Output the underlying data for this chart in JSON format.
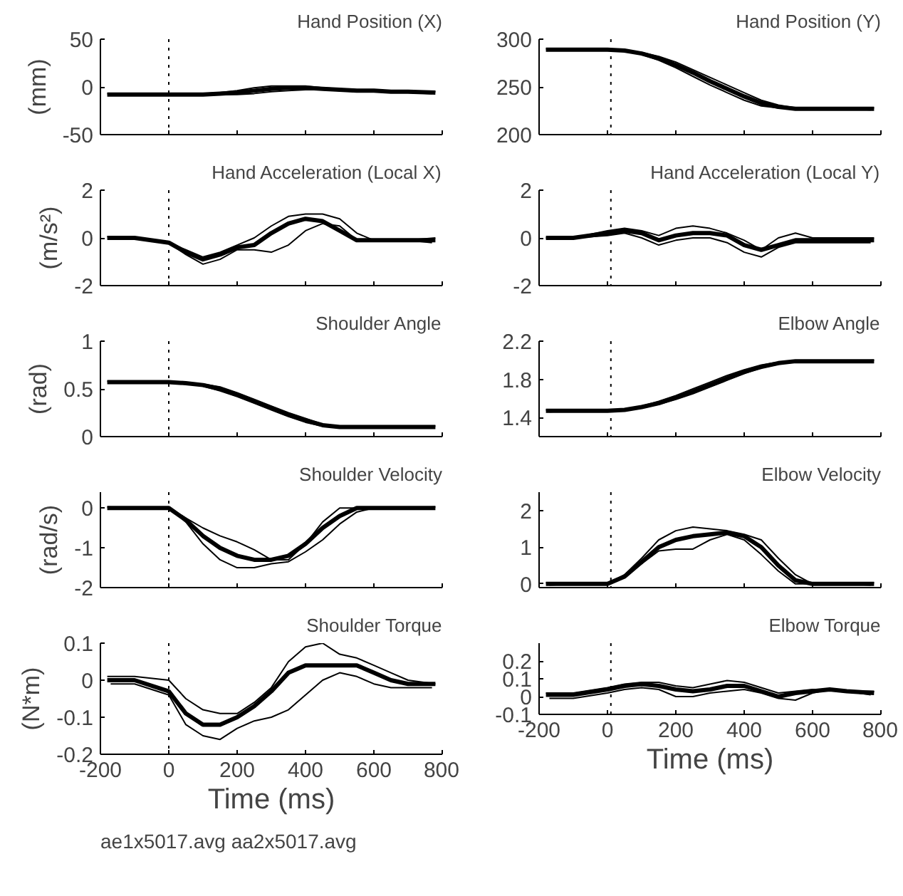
{
  "chart_data": [
    {
      "type": "line",
      "title": "Hand Position (X)",
      "ylabel": "(mm)",
      "xlim": [
        -200,
        800
      ],
      "xticks": [
        -200,
        0,
        200,
        400,
        600,
        800
      ],
      "ylim": [
        -50,
        50
      ],
      "yticks": [
        -50,
        0,
        50
      ],
      "tick_labels": "y",
      "ref_lines": [
        {
          "axis": "x",
          "value": 0,
          "line_style": "dotted",
          "color": "#000000"
        }
      ],
      "x": [
        -180,
        -100,
        0,
        50,
        100,
        150,
        200,
        250,
        300,
        350,
        400,
        450,
        500,
        550,
        600,
        650,
        700,
        780
      ],
      "series": [
        {
          "color": "#000000",
          "values": [
            -8,
            -8,
            -8,
            -8,
            -8,
            -7,
            -6,
            -4,
            -2,
            -1,
            -1,
            -2,
            -3,
            -4,
            -4,
            -5,
            -5,
            -6
          ]
        },
        {
          "color": "#000000",
          "values": [
            -7,
            -8,
            -8,
            -8,
            -7,
            -6,
            -4,
            -1,
            1,
            1,
            1,
            -1,
            -2,
            -3,
            -4,
            -5,
            -5,
            -5
          ]
        },
        {
          "color": "#000000",
          "x": [
            -170,
            -100,
            0,
            50,
            100,
            150,
            200,
            250,
            300,
            350,
            400,
            450,
            500,
            550,
            600,
            650,
            700,
            770
          ],
          "values": [
            -9,
            -8,
            -8,
            -8,
            -8,
            -8,
            -8,
            -7,
            -5,
            -4,
            -3,
            -3,
            -4,
            -5,
            -5,
            -5,
            -6,
            -7
          ]
        }
      ]
    },
    {
      "type": "line",
      "title": "Hand Position (Y)",
      "xlim": [
        -200,
        800
      ],
      "xticks": [
        -200,
        0,
        200,
        400,
        600,
        800
      ],
      "ylim": [
        200,
        300
      ],
      "yticks": [
        200,
        250,
        300
      ],
      "tick_labels": "y",
      "ref_lines": [
        {
          "axis": "x",
          "value": 10,
          "line_style": "dotted",
          "color": "#000000"
        }
      ],
      "x": [
        -180,
        -100,
        0,
        50,
        100,
        150,
        200,
        250,
        300,
        350,
        400,
        450,
        500,
        550,
        600,
        650,
        700,
        780
      ],
      "series": [
        {
          "color": "#000000",
          "values": [
            289,
            289,
            289,
            288,
            285,
            280,
            273,
            265,
            256,
            248,
            240,
            233,
            229,
            227,
            227,
            227,
            227,
            227
          ]
        },
        {
          "color": "#000000",
          "values": [
            290,
            289,
            289,
            288,
            286,
            282,
            276,
            268,
            260,
            252,
            244,
            236,
            231,
            228,
            227,
            227,
            227,
            228
          ]
        },
        {
          "color": "#000000",
          "x": [
            -170,
            -100,
            0,
            50,
            100,
            150,
            200,
            250,
            300,
            350,
            400,
            450,
            500,
            550,
            600,
            650,
            700,
            770
          ],
          "values": [
            288,
            289,
            289,
            288,
            284,
            278,
            270,
            261,
            252,
            244,
            236,
            230,
            228,
            227,
            227,
            227,
            227,
            226
          ]
        }
      ]
    },
    {
      "type": "line",
      "title": "Hand Acceleration (Local X)",
      "ylabel": "(m/s²)",
      "xlim": [
        -200,
        800
      ],
      "xticks": [
        -200,
        0,
        200,
        400,
        600,
        800
      ],
      "ylim": [
        -2,
        2
      ],
      "yticks": [
        -2,
        0,
        2
      ],
      "tick_labels": "y",
      "ref_lines": [
        {
          "axis": "x",
          "value": 0,
          "line_style": "dotted",
          "color": "#000000"
        }
      ],
      "x": [
        -180,
        -100,
        0,
        50,
        100,
        150,
        200,
        250,
        300,
        350,
        400,
        450,
        500,
        550,
        600,
        650,
        700,
        780
      ],
      "series": [
        {
          "color": "#000000",
          "values": [
            0,
            0,
            -0.2,
            -0.6,
            -0.9,
            -0.7,
            -0.4,
            -0.3,
            0.2,
            0.6,
            0.8,
            0.7,
            0.3,
            -0.1,
            -0.1,
            -0.1,
            -0.1,
            -0.1
          ]
        },
        {
          "color": "#000000",
          "values": [
            0.05,
            0,
            -0.2,
            -0.5,
            -0.8,
            -0.6,
            -0.3,
            0,
            0.5,
            0.9,
            1.0,
            1.0,
            0.8,
            0.2,
            -0.1,
            -0.1,
            -0.1,
            0
          ]
        },
        {
          "color": "#000000",
          "x": [
            -170,
            -100,
            0,
            50,
            100,
            150,
            200,
            250,
            300,
            350,
            400,
            450,
            500,
            550,
            600,
            650,
            700,
            770
          ],
          "values": [
            -0.05,
            0,
            -0.2,
            -0.7,
            -1.1,
            -0.9,
            -0.5,
            -0.5,
            -0.6,
            -0.3,
            0.3,
            0.6,
            0.5,
            -0.1,
            -0.1,
            -0.1,
            -0.1,
            -0.2
          ]
        }
      ]
    },
    {
      "type": "line",
      "title": "Hand Acceleration (Local Y)",
      "xlim": [
        -200,
        800
      ],
      "xticks": [
        -200,
        0,
        200,
        400,
        600,
        800
      ],
      "ylim": [
        -2,
        2
      ],
      "yticks": [
        -2,
        0,
        2
      ],
      "tick_labels": "y",
      "ref_lines": [
        {
          "axis": "x",
          "value": 10,
          "line_style": "dotted",
          "color": "#000000"
        }
      ],
      "x": [
        -180,
        -100,
        0,
        50,
        100,
        150,
        200,
        250,
        300,
        350,
        400,
        450,
        500,
        550,
        600,
        650,
        700,
        780
      ],
      "series": [
        {
          "color": "#000000",
          "values": [
            0,
            0,
            0.2,
            0.3,
            0.2,
            -0.1,
            0.1,
            0.2,
            0.2,
            0.1,
            -0.3,
            -0.5,
            -0.3,
            -0.1,
            -0.1,
            -0.1,
            -0.1,
            -0.1
          ]
        },
        {
          "color": "#000000",
          "values": [
            0,
            0,
            0.3,
            0.4,
            0.3,
            0.1,
            0.4,
            0.5,
            0.4,
            0.2,
            -0.1,
            -0.5,
            0,
            0.2,
            0,
            0,
            0,
            0
          ]
        },
        {
          "color": "#000000",
          "x": [
            -170,
            -100,
            0,
            50,
            100,
            150,
            200,
            250,
            300,
            350,
            400,
            450,
            500,
            550,
            600,
            650,
            700,
            770
          ],
          "values": [
            0,
            0,
            0.1,
            0.2,
            0,
            -0.3,
            -0.1,
            0,
            0,
            -0.2,
            -0.6,
            -0.8,
            -0.4,
            -0.2,
            -0.2,
            -0.2,
            -0.2,
            -0.2
          ]
        }
      ]
    },
    {
      "type": "line",
      "title": "Shoulder Angle",
      "ylabel": "(rad)",
      "xlim": [
        -200,
        800
      ],
      "xticks": [
        -200,
        0,
        200,
        400,
        600,
        800
      ],
      "ylim": [
        0,
        1
      ],
      "yticks": [
        0,
        0.5,
        1
      ],
      "tick_labels": "y",
      "ref_lines": [
        {
          "axis": "x",
          "value": 0,
          "line_style": "dotted",
          "color": "#000000"
        }
      ],
      "x": [
        -180,
        -100,
        0,
        50,
        100,
        150,
        200,
        250,
        300,
        350,
        400,
        450,
        500,
        550,
        600,
        650,
        700,
        780
      ],
      "series": [
        {
          "color": "#000000",
          "values": [
            0.57,
            0.57,
            0.57,
            0.56,
            0.54,
            0.5,
            0.44,
            0.37,
            0.3,
            0.23,
            0.17,
            0.12,
            0.1,
            0.1,
            0.1,
            0.1,
            0.1,
            0.1
          ]
        },
        {
          "color": "#000000",
          "values": [
            0.58,
            0.57,
            0.57,
            0.56,
            0.55,
            0.52,
            0.46,
            0.39,
            0.32,
            0.25,
            0.19,
            0.13,
            0.1,
            0.1,
            0.1,
            0.1,
            0.1,
            0.11
          ]
        },
        {
          "color": "#000000",
          "x": [
            -170,
            -100,
            0,
            50,
            100,
            150,
            200,
            250,
            300,
            350,
            400,
            450,
            500,
            550,
            600,
            650,
            700,
            770
          ],
          "values": [
            0.56,
            0.57,
            0.57,
            0.56,
            0.53,
            0.48,
            0.42,
            0.35,
            0.28,
            0.21,
            0.15,
            0.11,
            0.1,
            0.1,
            0.1,
            0.1,
            0.1,
            0.09
          ]
        }
      ]
    },
    {
      "type": "line",
      "title": "Elbow Angle",
      "xlim": [
        -200,
        800
      ],
      "xticks": [
        -200,
        0,
        200,
        400,
        600,
        800
      ],
      "ylim": [
        1.2,
        2.2
      ],
      "yticks": [
        1.4,
        1.8,
        2.2
      ],
      "tick_labels": "y",
      "ref_lines": [
        {
          "axis": "x",
          "value": 10,
          "line_style": "dotted",
          "color": "#000000"
        }
      ],
      "x": [
        -180,
        -100,
        0,
        50,
        100,
        150,
        200,
        250,
        300,
        350,
        400,
        450,
        500,
        550,
        600,
        650,
        700,
        780
      ],
      "series": [
        {
          "color": "#000000",
          "values": [
            1.47,
            1.47,
            1.47,
            1.48,
            1.51,
            1.55,
            1.61,
            1.67,
            1.74,
            1.81,
            1.88,
            1.93,
            1.97,
            1.99,
            1.99,
            1.99,
            1.99,
            1.99
          ]
        },
        {
          "color": "#000000",
          "values": [
            1.48,
            1.47,
            1.47,
            1.48,
            1.52,
            1.57,
            1.63,
            1.7,
            1.77,
            1.84,
            1.9,
            1.95,
            1.98,
            1.99,
            1.99,
            1.99,
            1.99,
            2.0
          ]
        },
        {
          "color": "#000000",
          "x": [
            -170,
            -100,
            0,
            50,
            100,
            150,
            200,
            250,
            300,
            350,
            400,
            450,
            500,
            550,
            600,
            650,
            700,
            770
          ],
          "values": [
            1.46,
            1.47,
            1.47,
            1.48,
            1.5,
            1.54,
            1.59,
            1.65,
            1.72,
            1.79,
            1.86,
            1.92,
            1.96,
            1.99,
            1.99,
            1.99,
            1.99,
            1.98
          ]
        }
      ]
    },
    {
      "type": "line",
      "title": "Shoulder Velocity",
      "ylabel": "(rad/s)",
      "xlim": [
        -200,
        800
      ],
      "xticks": [
        -200,
        0,
        200,
        400,
        600,
        800
      ],
      "ylim": [
        -2,
        0.4
      ],
      "yticks": [
        -2,
        -1,
        0
      ],
      "tick_labels": "y",
      "ref_lines": [
        {
          "axis": "x",
          "value": 0,
          "line_style": "dotted",
          "color": "#000000"
        }
      ],
      "x": [
        -180,
        -100,
        0,
        50,
        100,
        150,
        200,
        250,
        300,
        350,
        400,
        450,
        500,
        550,
        600,
        650,
        700,
        780
      ],
      "series": [
        {
          "color": "#000000",
          "values": [
            0,
            0,
            0,
            -0.3,
            -0.7,
            -1.0,
            -1.2,
            -1.3,
            -1.3,
            -1.2,
            -0.9,
            -0.5,
            -0.2,
            0,
            0,
            0,
            0,
            0
          ]
        },
        {
          "color": "#000000",
          "values": [
            0.03,
            0,
            0,
            -0.25,
            -0.5,
            -0.7,
            -0.85,
            -1.05,
            -1.3,
            -1.3,
            -0.9,
            -0.35,
            0,
            0,
            0,
            0,
            0,
            0.03
          ]
        },
        {
          "color": "#000000",
          "x": [
            -170,
            -100,
            0,
            50,
            100,
            150,
            200,
            250,
            300,
            350,
            400,
            450,
            500,
            550,
            600,
            650,
            700,
            770
          ],
          "values": [
            -0.03,
            0,
            0,
            -0.35,
            -0.9,
            -1.3,
            -1.5,
            -1.5,
            -1.4,
            -1.35,
            -1.1,
            -0.8,
            -0.4,
            -0.1,
            0,
            0,
            0,
            -0.03
          ]
        }
      ]
    },
    {
      "type": "line",
      "title": "Elbow Velocity",
      "xlim": [
        -200,
        800
      ],
      "xticks": [
        -200,
        0,
        200,
        400,
        600,
        800
      ],
      "ylim": [
        -0.1,
        2.5
      ],
      "yticks": [
        0,
        1,
        2
      ],
      "tick_labels": "y",
      "ref_lines": [
        {
          "axis": "x",
          "value": 10,
          "line_style": "dotted",
          "color": "#000000"
        }
      ],
      "x": [
        -180,
        -100,
        0,
        50,
        100,
        150,
        200,
        250,
        300,
        350,
        400,
        450,
        500,
        550,
        600,
        650,
        700,
        780
      ],
      "series": [
        {
          "color": "#000000",
          "values": [
            0,
            0,
            0,
            0.2,
            0.6,
            1.0,
            1.2,
            1.3,
            1.35,
            1.4,
            1.3,
            1.0,
            0.5,
            0.1,
            0,
            0,
            0,
            0
          ]
        },
        {
          "color": "#000000",
          "values": [
            0.03,
            0,
            0,
            0.25,
            0.7,
            1.2,
            1.45,
            1.55,
            1.5,
            1.45,
            1.35,
            1.2,
            0.7,
            0.25,
            0,
            0,
            0,
            0.03
          ]
        },
        {
          "color": "#000000",
          "x": [
            -170,
            -100,
            0,
            50,
            100,
            150,
            200,
            250,
            300,
            350,
            400,
            450,
            500,
            550,
            600,
            650,
            700,
            770
          ],
          "values": [
            -0.03,
            0,
            0,
            0.2,
            0.55,
            0.9,
            0.95,
            0.95,
            1.2,
            1.35,
            1.2,
            0.8,
            0.35,
            0,
            0,
            0,
            0,
            -0.03
          ]
        }
      ]
    },
    {
      "type": "line",
      "title": "Shoulder Torque",
      "ylabel": "(N*m)",
      "xlabel": "Time (ms)",
      "xlim": [
        -200,
        800
      ],
      "xticks": [
        -200,
        0,
        200,
        400,
        600,
        800
      ],
      "ylim": [
        -0.2,
        0.1
      ],
      "yticks": [
        -0.2,
        -0.1,
        0,
        0.1
      ],
      "ref_lines": [
        {
          "axis": "x",
          "value": 0,
          "line_style": "dotted",
          "color": "#000000"
        }
      ],
      "annotations": [
        "ae1x5017.avg aa2x5017.avg"
      ],
      "x": [
        -180,
        -100,
        0,
        50,
        100,
        150,
        200,
        250,
        300,
        350,
        400,
        450,
        500,
        550,
        600,
        650,
        700,
        780
      ],
      "series": [
        {
          "color": "#000000",
          "values": [
            0,
            0,
            -0.03,
            -0.09,
            -0.12,
            -0.12,
            -0.1,
            -0.07,
            -0.03,
            0.02,
            0.04,
            0.04,
            0.04,
            0.04,
            0.02,
            0,
            -0.01,
            -0.01
          ]
        },
        {
          "color": "#000000",
          "values": [
            0.01,
            0.01,
            0,
            -0.05,
            -0.08,
            -0.09,
            -0.09,
            -0.06,
            -0.02,
            0.05,
            0.09,
            0.1,
            0.07,
            0.06,
            0.04,
            0.02,
            0,
            -0.01
          ]
        },
        {
          "color": "#000000",
          "x": [
            -170,
            -100,
            0,
            50,
            100,
            150,
            200,
            250,
            300,
            350,
            400,
            450,
            500,
            550,
            600,
            650,
            700,
            770
          ],
          "values": [
            -0.01,
            -0.01,
            -0.04,
            -0.12,
            -0.15,
            -0.16,
            -0.13,
            -0.11,
            -0.1,
            -0.08,
            -0.04,
            0,
            0.02,
            0.01,
            -0.01,
            -0.02,
            -0.02,
            -0.02
          ]
        }
      ]
    },
    {
      "type": "line",
      "title": "Elbow Torque",
      "xlabel": "Time (ms)",
      "xlim": [
        -200,
        800
      ],
      "xticks": [
        -200,
        0,
        200,
        400,
        600,
        800
      ],
      "ylim": [
        -0.1,
        0.3
      ],
      "yticks": [
        -0.1,
        0,
        0.1,
        0.2
      ],
      "ref_lines": [
        {
          "axis": "x",
          "value": 10,
          "line_style": "dotted",
          "color": "#000000"
        }
      ],
      "x": [
        -180,
        -100,
        0,
        50,
        100,
        150,
        200,
        250,
        300,
        350,
        400,
        450,
        500,
        550,
        600,
        650,
        700,
        780
      ],
      "series": [
        {
          "color": "#000000",
          "values": [
            0.01,
            0.01,
            0.04,
            0.06,
            0.07,
            0.06,
            0.04,
            0.03,
            0.04,
            0.06,
            0.06,
            0.03,
            0,
            0.02,
            0.03,
            0.04,
            0.03,
            0.02
          ]
        },
        {
          "color": "#000000",
          "values": [
            0.02,
            0.02,
            0.05,
            0.07,
            0.08,
            0.08,
            0.06,
            0.05,
            0.07,
            0.09,
            0.08,
            0.05,
            0.02,
            0.03,
            0.04,
            0.04,
            0.03,
            0.03
          ]
        },
        {
          "color": "#000000",
          "x": [
            -170,
            -100,
            0,
            50,
            100,
            150,
            200,
            250,
            300,
            350,
            400,
            450,
            500,
            550,
            600,
            650,
            700,
            770
          ],
          "values": [
            -0.01,
            -0.01,
            0.02,
            0.04,
            0.05,
            0.04,
            0,
            0,
            0.02,
            0.03,
            0.04,
            0.02,
            -0.01,
            -0.02,
            0.02,
            0.04,
            0.03,
            0.01
          ]
        }
      ]
    }
  ]
}
